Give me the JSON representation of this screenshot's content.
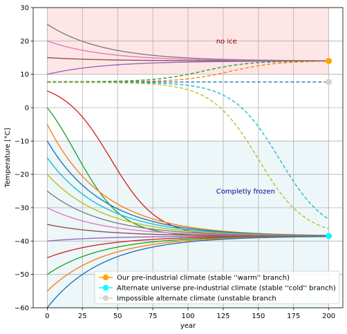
{
  "chart_data": {
    "type": "line",
    "xlabel": "year",
    "ylabel": "Temperature [°C]",
    "xlim": [
      -10,
      210
    ],
    "ylim": [
      -60,
      30
    ],
    "grid": true,
    "xticks": [
      0,
      25,
      50,
      75,
      100,
      125,
      150,
      175,
      200
    ],
    "yticks": [
      -60,
      -50,
      -40,
      -30,
      -20,
      -10,
      0,
      10,
      20,
      30
    ],
    "regions": [
      {
        "name": "no ice",
        "y_from": 10,
        "y_to": 30,
        "x_from": 0,
        "x_to": 200,
        "color": "#ffe6e6",
        "label_x": 120,
        "label_y": 20,
        "label_color": "#8b0000"
      },
      {
        "name": "Completly frozen",
        "y_from": -60,
        "y_to": -10,
        "x_from": 0,
        "x_to": 200,
        "color": "#edf6f9",
        "label_x": 120,
        "label_y": -25,
        "label_color": "#00008b"
      }
    ],
    "equilibria": {
      "warm": 14.0,
      "cold": -38.5,
      "unstable": 7.7
    },
    "series": [
      {
        "color": "#7f7f7f",
        "style": "solid",
        "start": 25,
        "target": 14.0,
        "rate": 0.025
      },
      {
        "color": "#e377c2",
        "style": "solid",
        "start": 20,
        "target": 14.0,
        "rate": 0.025
      },
      {
        "color": "#8c564b",
        "style": "solid",
        "start": 15,
        "target": 14.0,
        "rate": 0.025
      },
      {
        "color": "#9467bd",
        "style": "solid",
        "start": 10,
        "target": 14.0,
        "rate": 0.025
      },
      {
        "color": "#2ca02c",
        "style": "dashed",
        "start": 7.8,
        "target": 14.0,
        "rate": 0.025,
        "t_switch": 110
      },
      {
        "color": "#ff7f0e",
        "style": "dashed",
        "start": 7.75,
        "target": 14.0,
        "rate": 0.025,
        "t_switch": 130
      },
      {
        "color": "#1f77b4",
        "style": "dashed",
        "start": 7.7,
        "target": 7.7,
        "rate": 0.0
      },
      {
        "color": "#17becf",
        "style": "dashed",
        "start": 7.6,
        "target": -38.5,
        "rate": 0.025,
        "t_switch": 165
      },
      {
        "color": "#bcbd22",
        "style": "dashed",
        "start": 7.55,
        "target": -38.5,
        "rate": 0.025,
        "t_switch": 150
      },
      {
        "color": "#d62728",
        "style": "solid",
        "start": 5,
        "target": -38.5,
        "rate": 0.025,
        "t_switch": 45
      },
      {
        "color": "#2ca02c",
        "style": "solid",
        "start": 0,
        "target": -38.5,
        "rate": 0.025,
        "t_switch": 20
      },
      {
        "color": "#ff7f0e",
        "style": "solid",
        "start": -5,
        "target": -38.5,
        "rate": 0.025
      },
      {
        "color": "#1f77b4",
        "style": "solid",
        "start": -10,
        "target": -38.5,
        "rate": 0.025
      },
      {
        "color": "#17becf",
        "style": "solid",
        "start": -15,
        "target": -38.5,
        "rate": 0.025
      },
      {
        "color": "#bcbd22",
        "style": "solid",
        "start": -20,
        "target": -38.5,
        "rate": 0.025
      },
      {
        "color": "#7f7f7f",
        "style": "solid",
        "start": -25,
        "target": -38.5,
        "rate": 0.025
      },
      {
        "color": "#e377c2",
        "style": "solid",
        "start": -30,
        "target": -38.5,
        "rate": 0.025
      },
      {
        "color": "#8c564b",
        "style": "solid",
        "start": -35,
        "target": -38.5,
        "rate": 0.025
      },
      {
        "color": "#9467bd",
        "style": "solid",
        "start": -40,
        "target": -38.5,
        "rate": 0.025
      },
      {
        "color": "#d62728",
        "style": "solid",
        "start": -45,
        "target": -38.5,
        "rate": 0.025
      },
      {
        "color": "#2ca02c",
        "style": "solid",
        "start": -50,
        "target": -38.5,
        "rate": 0.025
      },
      {
        "color": "#ff7f0e",
        "style": "solid",
        "start": -55,
        "target": -38.5,
        "rate": 0.025
      },
      {
        "color": "#1f77b4",
        "style": "solid",
        "start": -60,
        "target": -38.5,
        "rate": 0.025
      }
    ],
    "markers": [
      {
        "name": "Our pre-industrial climate (stable ''warm'' branch)",
        "x": 200,
        "y": 14.0,
        "color": "#ffa500"
      },
      {
        "name": "Alternate universe pre-industrial climate (stable ''cold'' branch)",
        "x": 200,
        "y": -38.5,
        "color": "#00ffff"
      },
      {
        "name": "Impossible alternate climate (unstable branch",
        "x": 200,
        "y": 7.7,
        "color": "#d3d3d3"
      }
    ],
    "legend": {
      "placement": "lower right",
      "entries": [
        "Our pre-industrial climate (stable ''warm'' branch)",
        "Alternate universe pre-industrial climate (stable ''cold'' branch)",
        "Impossible alternate climate (unstable branch"
      ]
    }
  }
}
